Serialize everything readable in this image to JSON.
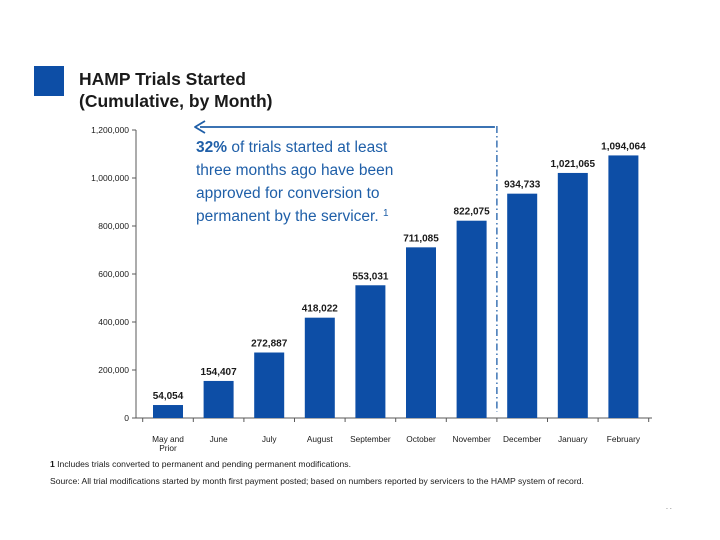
{
  "colors": {
    "bar": "#0d4ea6",
    "accent": "#1f5fa8",
    "axis": "#595959",
    "text": "#1a1a1a"
  },
  "title": {
    "line1": "HAMP Trials Started",
    "line2": "(Cumulative, by Month)"
  },
  "annotation": {
    "lines": [
      [
        "32%",
        " of trials started at least"
      ],
      [
        "three months ago have been",
        ""
      ],
      [
        "approved for conversion to",
        ""
      ],
      [
        "permanent by the servicer. ",
        "1"
      ]
    ]
  },
  "chart_data": {
    "type": "bar",
    "title": "HAMP Trials Started (Cumulative, by Month)",
    "categories": [
      "May and Prior",
      "June",
      "July",
      "August",
      "September",
      "October",
      "November",
      "December",
      "January",
      "February"
    ],
    "category_labels": [
      [
        "May and",
        "Prior"
      ],
      [
        "June"
      ],
      [
        "July"
      ],
      [
        "August"
      ],
      [
        "September"
      ],
      [
        "October"
      ],
      [
        "November"
      ],
      [
        "December"
      ],
      [
        "January"
      ],
      [
        "February"
      ]
    ],
    "values": [
      54054,
      154407,
      272887,
      418022,
      553031,
      711085,
      822075,
      934733,
      1021065,
      1094064
    ],
    "value_labels": [
      "54,054",
      "154,407",
      "272,887",
      "418,022",
      "553,031",
      "711,085",
      "822,075",
      "934,733",
      "1,021,065",
      "1,094,064"
    ],
    "ylim": [
      0,
      1200000
    ],
    "yticks": [
      0,
      200000,
      400000,
      600000,
      800000,
      1000000,
      1200000
    ],
    "ytick_labels": [
      "0",
      "200,000",
      "400,000",
      "600,000",
      "800,000",
      "1,000,000",
      "1,200,000"
    ],
    "grid": false,
    "xlabel": "",
    "ylabel": ""
  },
  "footnotes": {
    "note1_marker": "1",
    "note1_text": " Includes trials converted to permanent and pending permanent modifications.",
    "source": "Source: All trial modifications started by month first payment posted; based on numbers reported by servicers to the HAMP system of record."
  },
  "page_mark": ". ."
}
